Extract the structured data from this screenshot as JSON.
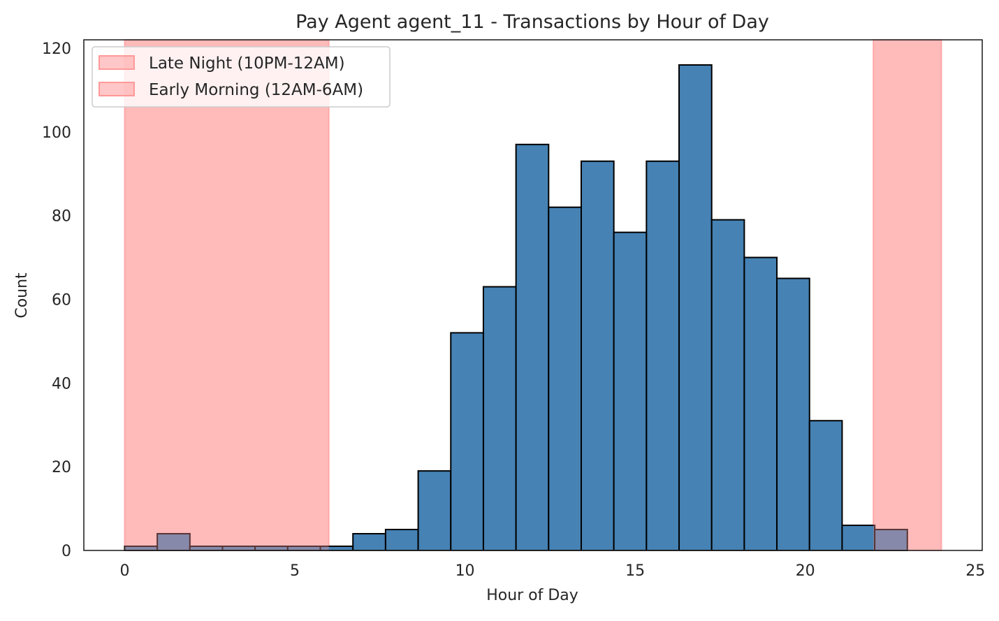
{
  "chart_data": {
    "type": "bar",
    "title": "Pay Agent agent_11 - Transactions by Hour of Day",
    "xlabel": "Hour of Day",
    "ylabel": "Count",
    "xlim": [
      -1.2,
      25.2
    ],
    "ylim": [
      0,
      122
    ],
    "xticks": [
      0,
      5,
      10,
      15,
      20,
      25
    ],
    "yticks": [
      0,
      20,
      40,
      60,
      80,
      100,
      120
    ],
    "bin_width": 0.9583,
    "bins_start": 0,
    "values": [
      1,
      4,
      1,
      1,
      1,
      1,
      1,
      4,
      5,
      19,
      52,
      63,
      97,
      82,
      93,
      76,
      93,
      116,
      79,
      70,
      65,
      31,
      6,
      5
    ],
    "grid": false,
    "bar_color": "#4682b4",
    "edge_color": "#000000",
    "shaded_regions": [
      {
        "label": "Late Night (10PM-12AM)",
        "x": [
          22,
          24
        ],
        "color": "#ff9999"
      },
      {
        "label": "Early Morning (12AM-6AM)",
        "x": [
          0,
          6
        ],
        "color": "#ff9999"
      }
    ],
    "legend_position": "upper-left"
  }
}
